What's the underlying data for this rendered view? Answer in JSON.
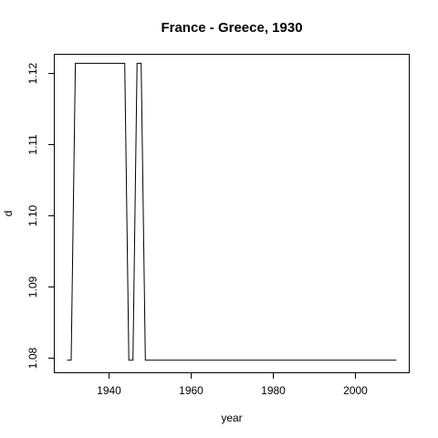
{
  "chart_data": {
    "type": "line",
    "title": "France - Greece, 1930",
    "xlabel": "year",
    "ylabel": "d",
    "xlim": [
      1927,
      2013
    ],
    "ylim": [
      1.078,
      1.1225
    ],
    "x_ticks": [
      1940,
      1960,
      1980,
      2000
    ],
    "x_tick_labels": [
      "1940",
      "1960",
      "1980",
      "2000"
    ],
    "y_ticks": [
      1.08,
      1.09,
      1.1,
      1.11,
      1.12
    ],
    "y_tick_labels": [
      "1.08",
      "1.09",
      "1.10",
      "1.11",
      "1.12"
    ],
    "grid": false,
    "series": [
      {
        "x": [
          1930,
          1931,
          1932,
          1944,
          1945,
          1946,
          1947,
          1948,
          1949,
          2010
        ],
        "y": [
          1.0797,
          1.0797,
          1.1213,
          1.1213,
          1.0797,
          1.0797,
          1.1213,
          1.1213,
          1.0797,
          1.0797
        ]
      }
    ]
  }
}
